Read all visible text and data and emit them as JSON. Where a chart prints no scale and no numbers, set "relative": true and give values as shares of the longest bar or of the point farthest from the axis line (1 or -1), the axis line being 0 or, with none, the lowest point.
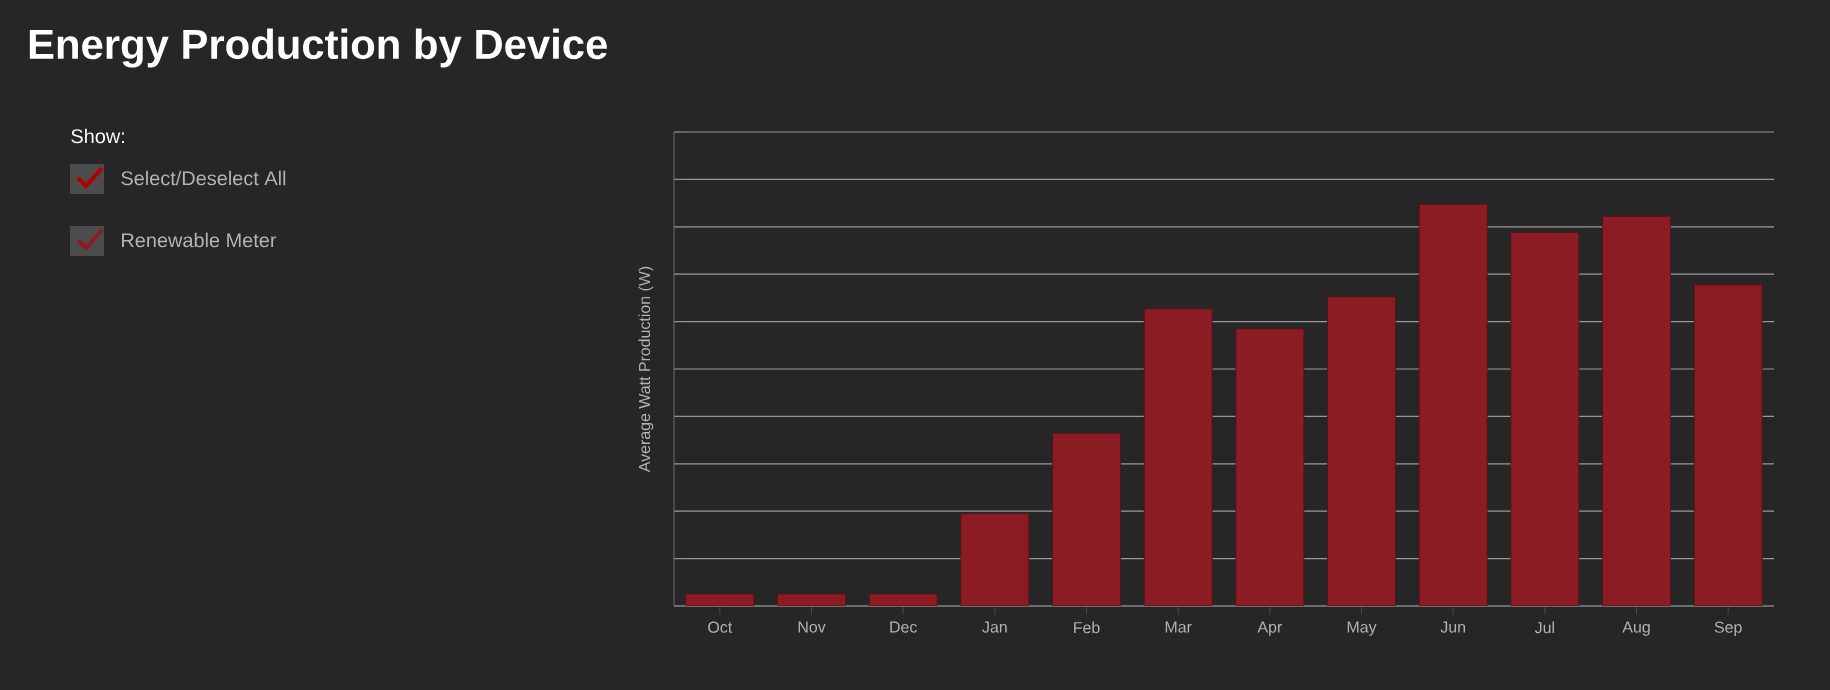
{
  "chart_data": {
    "type": "bar",
    "title": "Energy Production by Device",
    "ylabel": "Average Watt Production (W)",
    "legend_title": "Show:",
    "annotations": [
      "Select/Deselect All"
    ],
    "legend": "left",
    "grid": "y",
    "relative": true,
    "categories": [
      "Oct",
      "Nov",
      "Dec",
      "Jan",
      "Feb",
      "Mar",
      "Apr",
      "May",
      "Jun",
      "Jul",
      "Aug",
      "Sep"
    ],
    "series": [
      {
        "name": "Renewable Meter",
        "color": "#8b1c24",
        "values": [
          0.03,
          0.03,
          0.03,
          0.23,
          0.43,
          0.74,
          0.69,
          0.77,
          1,
          0.93,
          0.97,
          0.8
        ]
      }
    ]
  }
}
